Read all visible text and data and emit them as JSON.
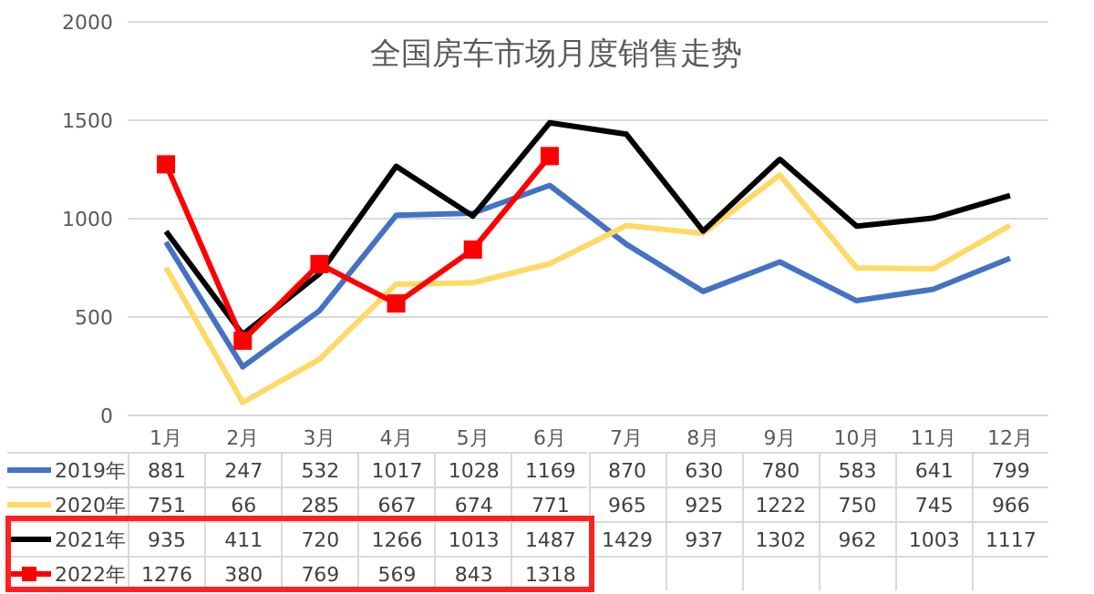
{
  "chart_data": {
    "type": "line",
    "title": "全国房车市场月度销售走势",
    "categories": [
      "1月",
      "2月",
      "3月",
      "4月",
      "5月",
      "6月",
      "7月",
      "8月",
      "9月",
      "10月",
      "11月",
      "12月"
    ],
    "series": [
      {
        "name": "2019年",
        "color": "#4472c4",
        "marker": "none",
        "values": [
          881,
          247,
          532,
          1017,
          1028,
          1169,
          870,
          630,
          780,
          583,
          641,
          799
        ]
      },
      {
        "name": "2020年",
        "color": "#ffd966",
        "marker": "none",
        "values": [
          751,
          66,
          285,
          667,
          674,
          771,
          965,
          925,
          1222,
          750,
          745,
          966
        ]
      },
      {
        "name": "2021年",
        "color": "#000000",
        "marker": "none",
        "values": [
          935,
          411,
          720,
          1266,
          1013,
          1487,
          1429,
          937,
          1302,
          962,
          1003,
          1117
        ]
      },
      {
        "name": "2022年",
        "color": "#ff0000",
        "marker": "square",
        "values": [
          1276,
          380,
          769,
          569,
          843,
          1318,
          null,
          null,
          null,
          null,
          null,
          null
        ]
      }
    ],
    "ylim": [
      0,
      2000
    ],
    "yticks": [
      0,
      500,
      1000,
      1500,
      2000
    ],
    "grid": "y",
    "legend": "bottom",
    "data_labels": true
  }
}
